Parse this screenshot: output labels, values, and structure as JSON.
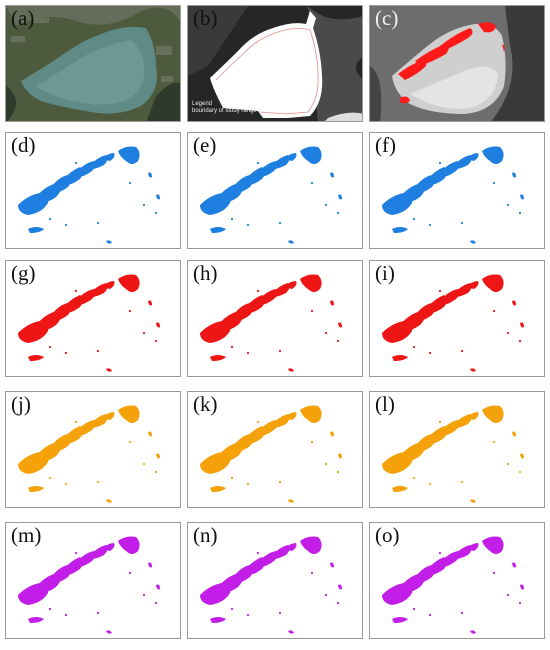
{
  "panels": [
    {
      "label": "(a)",
      "kind": "satellite"
    },
    {
      "label": "(b)",
      "kind": "mask",
      "legend": {
        "title": "Legend",
        "item": "boundary of study range"
      }
    },
    {
      "label": "(c)",
      "kind": "gray",
      "color": "#ff1a1a"
    },
    {
      "label": "(d)",
      "kind": "map",
      "color": "#1e7fe0"
    },
    {
      "label": "(e)",
      "kind": "map",
      "color": "#1e7fe0"
    },
    {
      "label": "(f)",
      "kind": "map",
      "color": "#1e7fe0"
    },
    {
      "label": "(g)",
      "kind": "map",
      "color": "#ee1515"
    },
    {
      "label": "(h)",
      "kind": "map",
      "color": "#ee1515"
    },
    {
      "label": "(i)",
      "kind": "map",
      "color": "#ee1515"
    },
    {
      "label": "(j)",
      "kind": "map",
      "color": "#f5a20a"
    },
    {
      "label": "(k)",
      "kind": "map",
      "color": "#f5a20a"
    },
    {
      "label": "(l)",
      "kind": "map",
      "color": "#f5a20a"
    },
    {
      "label": "(m)",
      "kind": "map",
      "color": "#c21ee8"
    },
    {
      "label": "(n)",
      "kind": "map",
      "color": "#c21ee8"
    },
    {
      "label": "(o)",
      "kind": "map",
      "color": "#c21ee8"
    }
  ]
}
